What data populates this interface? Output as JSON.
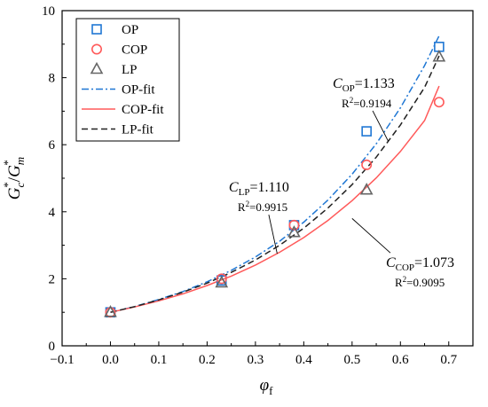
{
  "chart_data": {
    "type": "scatter",
    "xlabel": "φf",
    "ylabel": "Gc*/Gm*",
    "xlim": [
      -0.1,
      0.75
    ],
    "ylim": [
      0,
      10
    ],
    "x_ticks": [
      "−0.1",
      "0.0",
      "0.1",
      "0.2",
      "0.3",
      "0.4",
      "0.5",
      "0.6",
      "0.7"
    ],
    "x_tick_values": [
      -0.1,
      0.0,
      0.1,
      0.2,
      0.3,
      0.4,
      0.5,
      0.6,
      0.7
    ],
    "y_ticks": [
      "0",
      "2",
      "4",
      "6",
      "8",
      "10"
    ],
    "y_tick_values": [
      0,
      2,
      4,
      6,
      8,
      10
    ],
    "grid": false,
    "legend_position": "top-left",
    "series": [
      {
        "name": "OP",
        "kind": "points",
        "marker": "square",
        "color": "#1f77d4",
        "x": [
          0.0,
          0.23,
          0.38,
          0.53,
          0.68
        ],
        "y": [
          1.0,
          1.95,
          3.6,
          6.4,
          8.92
        ]
      },
      {
        "name": "COP",
        "kind": "points",
        "marker": "circle",
        "color": "#ff5a5a",
        "x": [
          0.0,
          0.23,
          0.38,
          0.53,
          0.68
        ],
        "y": [
          1.0,
          2.0,
          3.6,
          5.4,
          7.27
        ]
      },
      {
        "name": "LP",
        "kind": "points",
        "marker": "triangle",
        "color": "#666666",
        "x": [
          0.0,
          0.23,
          0.38,
          0.53,
          0.68
        ],
        "y": [
          1.0,
          1.88,
          3.38,
          4.65,
          8.62
        ]
      },
      {
        "name": "OP-fit",
        "kind": "line",
        "dash": "dashdot",
        "color": "#1f77d4",
        "x": [
          0.0,
          0.05,
          0.1,
          0.15,
          0.2,
          0.25,
          0.3,
          0.35,
          0.4,
          0.45,
          0.5,
          0.55,
          0.6,
          0.65,
          0.68
        ],
        "y": [
          1.0,
          1.17,
          1.38,
          1.62,
          1.91,
          2.25,
          2.65,
          3.12,
          3.69,
          4.35,
          5.12,
          6.03,
          7.1,
          8.36,
          9.25
        ]
      },
      {
        "name": "COP-fit",
        "kind": "line",
        "dash": "solid",
        "color": "#ff5a5a",
        "x": [
          0.0,
          0.05,
          0.1,
          0.15,
          0.2,
          0.25,
          0.3,
          0.35,
          0.4,
          0.45,
          0.5,
          0.55,
          0.6,
          0.65,
          0.68
        ],
        "y": [
          1.0,
          1.16,
          1.34,
          1.55,
          1.8,
          2.08,
          2.41,
          2.79,
          3.23,
          3.74,
          4.33,
          5.01,
          5.8,
          6.72,
          7.75
        ]
      },
      {
        "name": "LP-fit",
        "kind": "line",
        "dash": "dashed",
        "color": "#222222",
        "x": [
          0.0,
          0.05,
          0.1,
          0.15,
          0.2,
          0.25,
          0.3,
          0.35,
          0.4,
          0.45,
          0.5,
          0.55,
          0.6,
          0.65,
          0.68
        ],
        "y": [
          1.0,
          1.17,
          1.37,
          1.6,
          1.87,
          2.19,
          2.56,
          3.0,
          3.51,
          4.11,
          4.81,
          5.63,
          6.59,
          7.71,
          8.65
        ]
      }
    ],
    "annotations": [
      {
        "name": "OP",
        "coef_symbol": "C",
        "coef_sub": "OP",
        "coef_value": "=1.133",
        "r2_label": "R",
        "r2_sup": "2",
        "r2_value": "=0.9194",
        "label_x": 0.46,
        "label_y": 7.7,
        "arrow_x": 0.575,
        "arrow_y": 6.1
      },
      {
        "name": "LP",
        "coef_symbol": "C",
        "coef_sub": "LP",
        "coef_value": "=1.110",
        "r2_label": "R",
        "r2_sup": "2",
        "r2_value": "=0.9915",
        "label_x": 0.245,
        "label_y": 4.6,
        "arrow_x": 0.345,
        "arrow_y": 2.75
      },
      {
        "name": "COP",
        "coef_symbol": "C",
        "coef_sub": "COP",
        "coef_value": "=1.073",
        "r2_label": "R",
        "r2_sup": "2",
        "r2_value": "=0.9095",
        "label_x": 0.57,
        "label_y": 2.35,
        "arrow_x": 0.5,
        "arrow_y": 3.8
      }
    ]
  }
}
